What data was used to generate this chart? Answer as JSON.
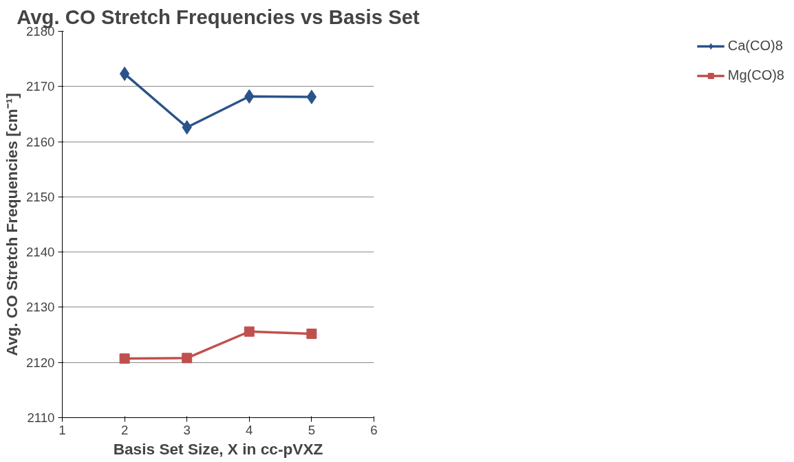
{
  "chart_data": {
    "type": "line",
    "title": "Avg. CO Stretch Frequencies vs Basis Set",
    "xlabel": "Basis Set Size, X in cc-pVXZ",
    "ylabel": "Avg. CO Stretch Frequencies [cm⁻¹]",
    "x": [
      2,
      3,
      4,
      5
    ],
    "series": [
      {
        "name": "Ca(CO)8",
        "color": "#2a5389",
        "marker": "diamond",
        "values": [
          2172.3,
          2162.6,
          2168.2,
          2168.1
        ]
      },
      {
        "name": "Mg(CO)8",
        "color": "#c0504d",
        "marker": "square",
        "values": [
          2120.7,
          2120.8,
          2125.6,
          2125.2
        ]
      }
    ],
    "xlim": [
      1,
      6
    ],
    "xticks": [
      1,
      2,
      3,
      4,
      5,
      6
    ],
    "ylim": [
      2110,
      2180
    ],
    "yticks": [
      2110,
      2120,
      2130,
      2140,
      2150,
      2160,
      2170,
      2180
    ],
    "grid": "y",
    "legend": "right",
    "line_style": "solid"
  }
}
